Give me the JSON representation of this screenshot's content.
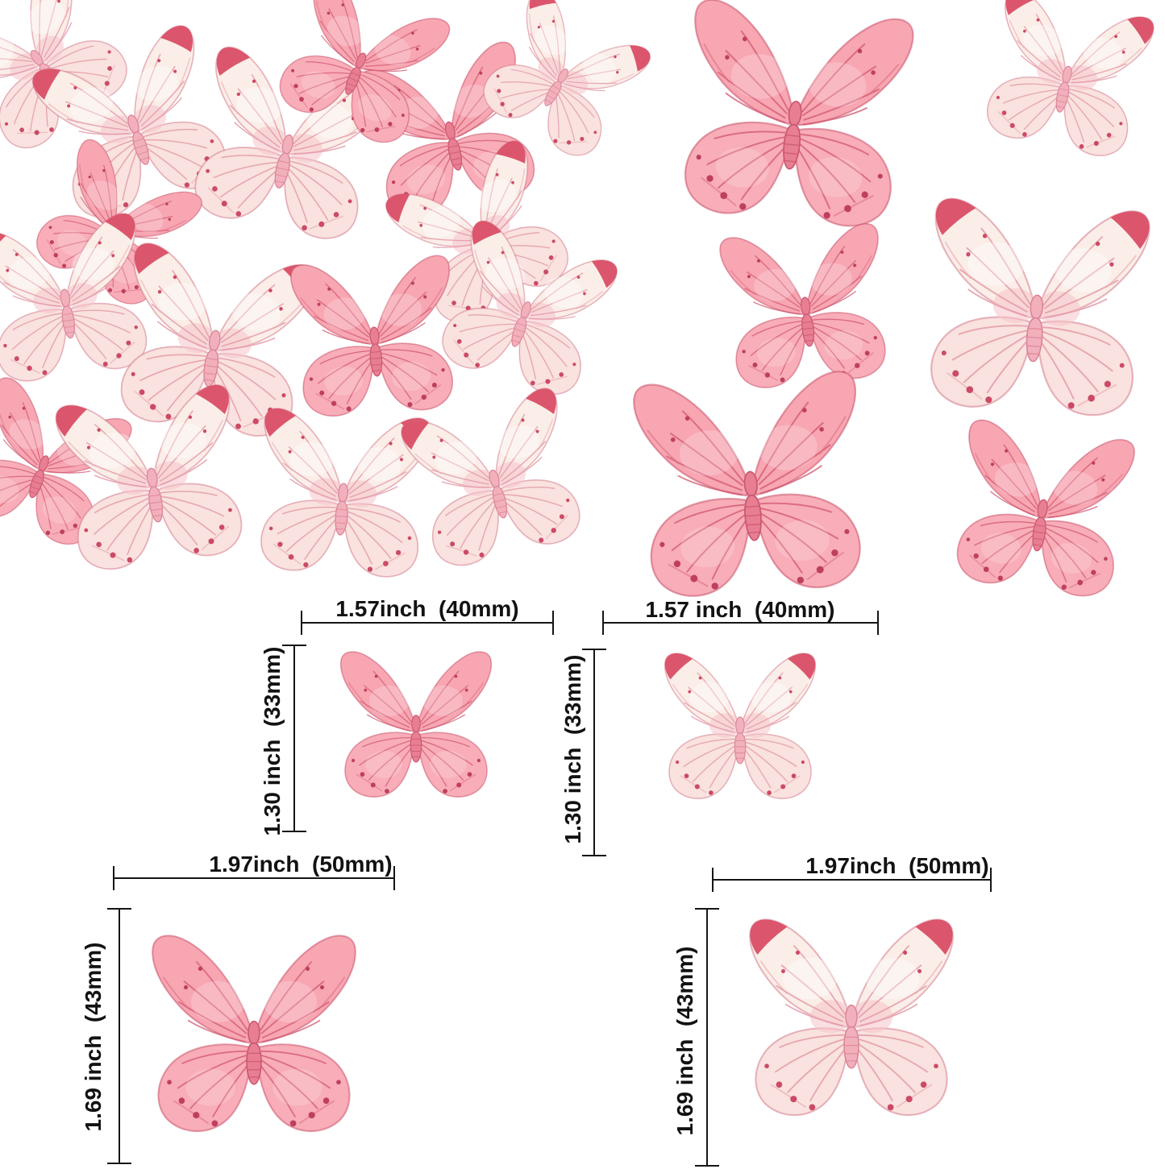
{
  "page": {
    "background_color": "#ffffff",
    "subject": "pink watercolor butterfly cake-topper decorations with size diagrams"
  },
  "colors": {
    "pink_wing": "#f7a6b2",
    "pink_vein": "#d25670",
    "cream_wing": "#fbeee8",
    "cream_vein": "#e59aa9",
    "wing_tip_accent": "#d84961",
    "spot": "#bf3f5e",
    "body_pink": "#e87e92",
    "dimension_line": "#151515",
    "label_text": "#121212"
  },
  "butterflies": {
    "pile_count": 16,
    "single_count": 6,
    "diagram_count": 4,
    "variants": [
      "pink",
      "cream"
    ]
  },
  "measure_diagrams": {
    "small_pink": {
      "width_label": "1.57inch  (40mm)",
      "height_label": "1.30 inch  (33mm)"
    },
    "small_cream": {
      "width_label": "1.57 inch  (40mm)",
      "height_label": "1.30 inch  (33mm)"
    },
    "large_pink": {
      "width_label": "1.97inch  (50mm)",
      "height_label": "1.69 inch  (43mm)"
    },
    "large_cream": {
      "width_label": "1.97inch  (50mm)",
      "height_label": "1.69 inch  (43mm)"
    }
  }
}
